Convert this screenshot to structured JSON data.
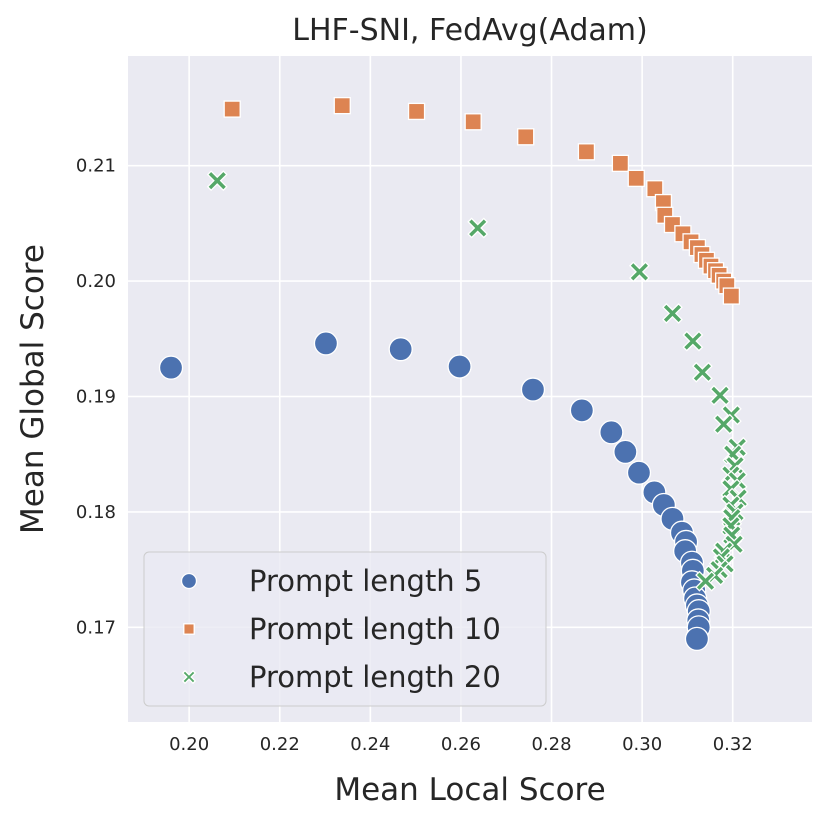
{
  "chart_data": {
    "type": "scatter",
    "title": "LHF-SNI, FedAvg(Adam)",
    "xlabel": "Mean Local Score",
    "ylabel": "Mean Global Score",
    "xlim": [
      0.1865,
      0.3375
    ],
    "ylim": [
      0.1618,
      0.2195
    ],
    "xticks": [
      0.2,
      0.22,
      0.24,
      0.26,
      0.28,
      0.3,
      0.32
    ],
    "xtick_labels": [
      "0.20",
      "0.22",
      "0.24",
      "0.26",
      "0.28",
      "0.30",
      "0.32"
    ],
    "yticks": [
      0.17,
      0.18,
      0.19,
      0.2,
      0.21
    ],
    "ytick_labels": [
      "0.17",
      "0.18",
      "0.19",
      "0.20",
      "0.21"
    ],
    "grid": true,
    "legend_position": "bottom-left",
    "series": [
      {
        "name": "Prompt length 5",
        "marker": "circle",
        "color": "#4c72b0",
        "points": [
          [
            0.196,
            0.1925
          ],
          [
            0.2302,
            0.1946
          ],
          [
            0.2467,
            0.1941
          ],
          [
            0.2597,
            0.1926
          ],
          [
            0.2759,
            0.1906
          ],
          [
            0.2867,
            0.1888
          ],
          [
            0.2932,
            0.1869
          ],
          [
            0.2963,
            0.1852
          ],
          [
            0.2993,
            0.1834
          ],
          [
            0.3027,
            0.1817
          ],
          [
            0.3048,
            0.1806
          ],
          [
            0.3067,
            0.1794
          ],
          [
            0.3088,
            0.1782
          ],
          [
            0.3097,
            0.1774
          ],
          [
            0.3095,
            0.1766
          ],
          [
            0.311,
            0.1756
          ],
          [
            0.3112,
            0.1749
          ],
          [
            0.311,
            0.1739
          ],
          [
            0.3115,
            0.1732
          ],
          [
            0.3117,
            0.1725
          ],
          [
            0.3121,
            0.1719
          ],
          [
            0.3125,
            0.1714
          ],
          [
            0.3124,
            0.1706
          ],
          [
            0.3125,
            0.17
          ],
          [
            0.3121,
            0.169
          ]
        ]
      },
      {
        "name": "Prompt length 10",
        "marker": "square",
        "color": "#dd8452",
        "points": [
          [
            0.2095,
            0.2149
          ],
          [
            0.2338,
            0.2152
          ],
          [
            0.2502,
            0.2147
          ],
          [
            0.2627,
            0.2138
          ],
          [
            0.2743,
            0.2125
          ],
          [
            0.2877,
            0.2112
          ],
          [
            0.2952,
            0.2102
          ],
          [
            0.2987,
            0.2089
          ],
          [
            0.3028,
            0.208
          ],
          [
            0.3047,
            0.2068
          ],
          [
            0.305,
            0.2057
          ],
          [
            0.3067,
            0.2049
          ],
          [
            0.309,
            0.2041
          ],
          [
            0.3108,
            0.2034
          ],
          [
            0.3122,
            0.2029
          ],
          [
            0.3132,
            0.2023
          ],
          [
            0.3142,
            0.2018
          ],
          [
            0.3152,
            0.2013
          ],
          [
            0.3162,
            0.2009
          ],
          [
            0.317,
            0.2005
          ],
          [
            0.318,
            0.2
          ],
          [
            0.3187,
            0.1996
          ],
          [
            0.3197,
            0.1987
          ]
        ]
      },
      {
        "name": "Prompt length 20",
        "marker": "x",
        "color": "#55a868",
        "points": [
          [
            0.2062,
            0.2087
          ],
          [
            0.2637,
            0.2046
          ],
          [
            0.2994,
            0.2008
          ],
          [
            0.3067,
            0.1972
          ],
          [
            0.3112,
            0.1948
          ],
          [
            0.3133,
            0.1921
          ],
          [
            0.3172,
            0.1901
          ],
          [
            0.3197,
            0.1884
          ],
          [
            0.318,
            0.1876
          ],
          [
            0.321,
            0.1856
          ],
          [
            0.32,
            0.185
          ],
          [
            0.3205,
            0.184
          ],
          [
            0.3196,
            0.1832
          ],
          [
            0.321,
            0.1827
          ],
          [
            0.3196,
            0.182
          ],
          [
            0.3212,
            0.1812
          ],
          [
            0.3196,
            0.1806
          ],
          [
            0.3205,
            0.18
          ],
          [
            0.3198,
            0.1795
          ],
          [
            0.3196,
            0.1788
          ],
          [
            0.3198,
            0.178
          ],
          [
            0.3203,
            0.1772
          ],
          [
            0.318,
            0.1766
          ],
          [
            0.3175,
            0.1761
          ],
          [
            0.3183,
            0.1755
          ],
          [
            0.317,
            0.175
          ],
          [
            0.316,
            0.1745
          ],
          [
            0.314,
            0.174
          ]
        ]
      }
    ]
  }
}
